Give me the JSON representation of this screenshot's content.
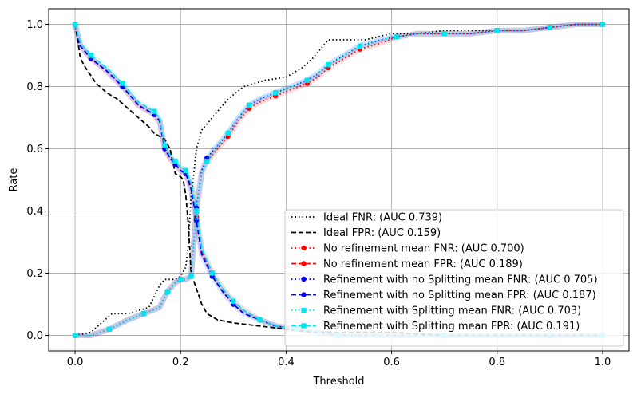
{
  "chart_data": {
    "type": "line",
    "title": "",
    "xlabel": "Threshold",
    "ylabel": "Rate",
    "xlim": [
      -0.05,
      1.05
    ],
    "ylim": [
      -0.05,
      1.05
    ],
    "xticks": [
      0.0,
      0.2,
      0.4,
      0.6,
      0.8,
      1.0
    ],
    "xtick_labels": [
      "0.0",
      "0.2",
      "0.4",
      "0.6",
      "0.8",
      "1.0"
    ],
    "yticks": [
      0.0,
      0.2,
      0.4,
      0.6,
      0.8,
      1.0
    ],
    "ytick_labels": [
      "0.0",
      "0.2",
      "0.4",
      "0.6",
      "0.8",
      "1.0"
    ],
    "grid": true,
    "legend_position": "lower-right",
    "series": [
      {
        "name": "Ideal FNR: (AUC 0.739)",
        "color": "#000000",
        "style": "dotted",
        "marker": "none",
        "x": [
          0.0,
          0.03,
          0.05,
          0.07,
          0.1,
          0.12,
          0.14,
          0.16,
          0.17,
          0.19,
          0.2,
          0.21,
          0.215,
          0.22,
          0.225,
          0.23,
          0.24,
          0.26,
          0.29,
          0.32,
          0.36,
          0.4,
          0.43,
          0.45,
          0.47,
          0.48,
          0.5,
          0.55,
          0.6,
          0.65,
          0.7,
          0.75,
          0.8,
          0.85,
          0.9,
          0.95,
          1.0
        ],
        "y": [
          0.0,
          0.01,
          0.04,
          0.07,
          0.07,
          0.08,
          0.09,
          0.16,
          0.18,
          0.18,
          0.19,
          0.22,
          0.3,
          0.45,
          0.52,
          0.6,
          0.66,
          0.7,
          0.76,
          0.8,
          0.82,
          0.83,
          0.86,
          0.89,
          0.93,
          0.95,
          0.95,
          0.95,
          0.97,
          0.97,
          0.98,
          0.98,
          0.98,
          0.98,
          0.99,
          1.0,
          1.0
        ]
      },
      {
        "name": "Ideal FPR: (AUC 0.159)",
        "color": "#000000",
        "style": "dashed",
        "marker": "none",
        "x": [
          0.0,
          0.005,
          0.01,
          0.02,
          0.04,
          0.06,
          0.08,
          0.1,
          0.12,
          0.14,
          0.15,
          0.17,
          0.18,
          0.185,
          0.19,
          0.2,
          0.205,
          0.21,
          0.215,
          0.22,
          0.23,
          0.24,
          0.25,
          0.27,
          0.3,
          0.35,
          0.4,
          0.45,
          0.5,
          0.6,
          0.7,
          0.8,
          0.9,
          1.0
        ],
        "y": [
          1.0,
          0.95,
          0.89,
          0.86,
          0.81,
          0.78,
          0.76,
          0.73,
          0.7,
          0.67,
          0.65,
          0.63,
          0.6,
          0.56,
          0.52,
          0.51,
          0.5,
          0.45,
          0.35,
          0.2,
          0.15,
          0.1,
          0.07,
          0.05,
          0.04,
          0.03,
          0.02,
          0.01,
          0.01,
          0.01,
          0.0,
          0.0,
          0.0,
          0.0
        ]
      },
      {
        "name": "No refinement mean FNR: (AUC 0.700)",
        "color": "#ff0000",
        "style": "dotted",
        "marker": "circle",
        "x": [
          0.0,
          0.03,
          0.065,
          0.1,
          0.13,
          0.16,
          0.175,
          0.19,
          0.2,
          0.21,
          0.22,
          0.225,
          0.23,
          0.24,
          0.25,
          0.27,
          0.29,
          0.31,
          0.33,
          0.35,
          0.38,
          0.41,
          0.44,
          0.46,
          0.48,
          0.51,
          0.54,
          0.58,
          0.61,
          0.65,
          0.7,
          0.75,
          0.8,
          0.85,
          0.9,
          0.95,
          1.0
        ],
        "y": [
          0.0,
          0.0,
          0.02,
          0.05,
          0.07,
          0.09,
          0.14,
          0.17,
          0.18,
          0.18,
          0.19,
          0.3,
          0.4,
          0.52,
          0.56,
          0.6,
          0.64,
          0.69,
          0.73,
          0.75,
          0.77,
          0.79,
          0.81,
          0.83,
          0.86,
          0.89,
          0.92,
          0.94,
          0.96,
          0.97,
          0.97,
          0.97,
          0.98,
          0.98,
          0.99,
          1.0,
          1.0
        ]
      },
      {
        "name": "No refinement mean FPR: (AUC 0.189)",
        "color": "#ff0000",
        "style": "dashed",
        "marker": "circle",
        "x": [
          0.0,
          0.01,
          0.03,
          0.06,
          0.09,
          0.12,
          0.15,
          0.16,
          0.17,
          0.18,
          0.19,
          0.2,
          0.21,
          0.22,
          0.23,
          0.24,
          0.26,
          0.28,
          0.3,
          0.32,
          0.35,
          0.38,
          0.42,
          0.46,
          0.5,
          0.6,
          0.7,
          0.8,
          0.9,
          1.0
        ],
        "y": [
          1.0,
          0.93,
          0.89,
          0.85,
          0.8,
          0.74,
          0.71,
          0.69,
          0.6,
          0.57,
          0.55,
          0.53,
          0.52,
          0.48,
          0.38,
          0.27,
          0.2,
          0.15,
          0.11,
          0.08,
          0.05,
          0.03,
          0.02,
          0.01,
          0.0,
          0.0,
          0.0,
          0.0,
          0.0,
          0.0
        ]
      },
      {
        "name": "Refinement with no Splitting mean FNR: (AUC 0.705)",
        "color": "#0000ff",
        "style": "dotted",
        "marker": "circle",
        "x": [
          0.0,
          0.03,
          0.065,
          0.1,
          0.13,
          0.16,
          0.175,
          0.19,
          0.2,
          0.21,
          0.22,
          0.225,
          0.23,
          0.24,
          0.25,
          0.27,
          0.29,
          0.31,
          0.33,
          0.35,
          0.38,
          0.41,
          0.44,
          0.46,
          0.48,
          0.51,
          0.54,
          0.58,
          0.61,
          0.65,
          0.7,
          0.75,
          0.8,
          0.85,
          0.9,
          0.95,
          1.0
        ],
        "y": [
          0.0,
          0.0,
          0.02,
          0.05,
          0.07,
          0.09,
          0.14,
          0.17,
          0.18,
          0.18,
          0.19,
          0.3,
          0.41,
          0.53,
          0.57,
          0.61,
          0.65,
          0.7,
          0.74,
          0.76,
          0.78,
          0.8,
          0.82,
          0.84,
          0.87,
          0.9,
          0.93,
          0.95,
          0.96,
          0.97,
          0.97,
          0.97,
          0.98,
          0.98,
          0.99,
          1.0,
          1.0
        ]
      },
      {
        "name": "Refinement with no Splitting mean FPR: (AUC 0.187)",
        "color": "#0000ff",
        "style": "dashed",
        "marker": "circle",
        "x": [
          0.0,
          0.01,
          0.03,
          0.06,
          0.09,
          0.12,
          0.15,
          0.16,
          0.17,
          0.18,
          0.19,
          0.2,
          0.21,
          0.22,
          0.23,
          0.24,
          0.26,
          0.28,
          0.3,
          0.32,
          0.35,
          0.38,
          0.42,
          0.46,
          0.5,
          0.6,
          0.7,
          0.8,
          0.9,
          1.0
        ],
        "y": [
          1.0,
          0.93,
          0.89,
          0.85,
          0.8,
          0.74,
          0.71,
          0.69,
          0.6,
          0.57,
          0.55,
          0.53,
          0.52,
          0.47,
          0.37,
          0.26,
          0.19,
          0.14,
          0.1,
          0.07,
          0.05,
          0.03,
          0.02,
          0.01,
          0.0,
          0.0,
          0.0,
          0.0,
          0.0,
          0.0
        ]
      },
      {
        "name": "Refinement with Splitting mean FNR: (AUC 0.703)",
        "color": "#00e5ee",
        "style": "dotted",
        "marker": "square",
        "x": [
          0.0,
          0.03,
          0.065,
          0.1,
          0.13,
          0.16,
          0.175,
          0.19,
          0.2,
          0.21,
          0.22,
          0.225,
          0.23,
          0.24,
          0.25,
          0.27,
          0.29,
          0.31,
          0.33,
          0.35,
          0.38,
          0.41,
          0.44,
          0.46,
          0.48,
          0.51,
          0.54,
          0.58,
          0.61,
          0.65,
          0.7,
          0.75,
          0.8,
          0.85,
          0.9,
          0.95,
          1.0
        ],
        "y": [
          0.0,
          0.0,
          0.02,
          0.05,
          0.07,
          0.09,
          0.14,
          0.17,
          0.18,
          0.18,
          0.19,
          0.3,
          0.4,
          0.52,
          0.56,
          0.61,
          0.65,
          0.7,
          0.74,
          0.76,
          0.78,
          0.8,
          0.82,
          0.84,
          0.87,
          0.9,
          0.93,
          0.95,
          0.96,
          0.97,
          0.97,
          0.97,
          0.98,
          0.98,
          0.99,
          1.0,
          1.0
        ]
      },
      {
        "name": "Refinement with Splitting mean FPR: (AUC 0.191)",
        "color": "#00e5ee",
        "style": "dashed",
        "marker": "square",
        "x": [
          0.0,
          0.01,
          0.03,
          0.06,
          0.09,
          0.12,
          0.15,
          0.16,
          0.17,
          0.18,
          0.19,
          0.2,
          0.21,
          0.22,
          0.23,
          0.24,
          0.26,
          0.28,
          0.3,
          0.32,
          0.35,
          0.38,
          0.42,
          0.46,
          0.5,
          0.6,
          0.7,
          0.8,
          0.9,
          1.0
        ],
        "y": [
          1.0,
          0.94,
          0.9,
          0.86,
          0.81,
          0.75,
          0.72,
          0.7,
          0.61,
          0.58,
          0.56,
          0.54,
          0.53,
          0.49,
          0.4,
          0.28,
          0.2,
          0.15,
          0.11,
          0.08,
          0.05,
          0.03,
          0.02,
          0.01,
          0.0,
          0.0,
          0.0,
          0.0,
          0.0,
          0.0
        ]
      }
    ]
  }
}
